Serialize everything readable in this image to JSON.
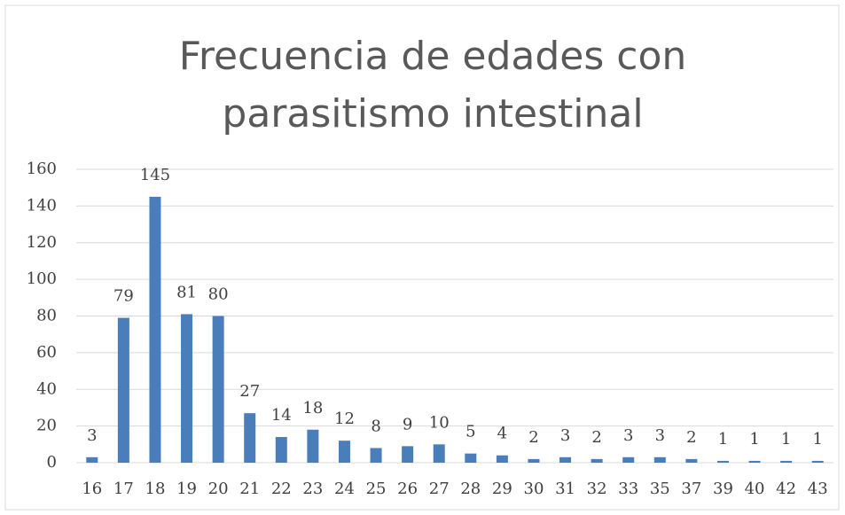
{
  "chart_data": {
    "type": "bar",
    "title": [
      "Frecuencia de edades con",
      "parasitismo intestinal"
    ],
    "categories": [
      "16",
      "17",
      "18",
      "19",
      "20",
      "21",
      "22",
      "23",
      "24",
      "25",
      "26",
      "27",
      "28",
      "29",
      "30",
      "31",
      "32",
      "33",
      "35",
      "37",
      "39",
      "40",
      "42",
      "43"
    ],
    "values": [
      3,
      79,
      145,
      81,
      80,
      27,
      14,
      18,
      12,
      8,
      9,
      10,
      5,
      4,
      2,
      3,
      2,
      3,
      3,
      2,
      1,
      1,
      1,
      1
    ],
    "color": "#4a7ebb",
    "ylim": [
      0,
      160
    ],
    "yticks": [
      0,
      20,
      40,
      60,
      80,
      100,
      120,
      140,
      160
    ],
    "grid": true,
    "data_labels": true
  }
}
